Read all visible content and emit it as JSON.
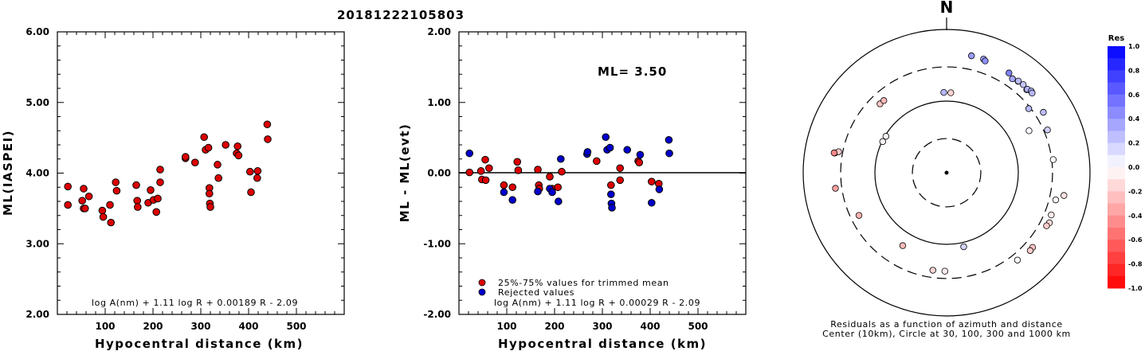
{
  "event_id": "20181222105803",
  "chart_data": [
    {
      "type": "scatter",
      "ylabel": "ML(IASPEI)",
      "xlabel": "Hypocentral distance (km)",
      "xlim": [
        0,
        600
      ],
      "ylim": [
        2.0,
        6.0
      ],
      "xticks": [
        "100",
        "200",
        "300",
        "400",
        "500"
      ],
      "yticks": [
        "2.00",
        "3.00",
        "4.00",
        "5.00",
        "6.00"
      ],
      "formula": "log A(nm) + 1.11 log R + 0.00189 R - 2.09",
      "point_color": "#dd0000",
      "points": [
        [
          22,
          3.81
        ],
        [
          22,
          3.55
        ],
        [
          52,
          3.61
        ],
        [
          55,
          3.5
        ],
        [
          58,
          3.5
        ],
        [
          55,
          3.78
        ],
        [
          66,
          3.67
        ],
        [
          94,
          3.47
        ],
        [
          96,
          3.38
        ],
        [
          110,
          3.55
        ],
        [
          112,
          3.3
        ],
        [
          122,
          3.87
        ],
        [
          124,
          3.75
        ],
        [
          165,
          3.83
        ],
        [
          167,
          3.61
        ],
        [
          168,
          3.52
        ],
        [
          190,
          3.58
        ],
        [
          195,
          3.76
        ],
        [
          201,
          3.62
        ],
        [
          207,
          3.45
        ],
        [
          210,
          3.64
        ],
        [
          215,
          3.87
        ],
        [
          215,
          4.05
        ],
        [
          268,
          4.21
        ],
        [
          268,
          4.23
        ],
        [
          288,
          4.15
        ],
        [
          307,
          4.51
        ],
        [
          310,
          4.33
        ],
        [
          316,
          4.36
        ],
        [
          318,
          3.79
        ],
        [
          318,
          3.71
        ],
        [
          319,
          3.57
        ],
        [
          320,
          3.52
        ],
        [
          335,
          4.12
        ],
        [
          337,
          3.93
        ],
        [
          352,
          4.4
        ],
        [
          375,
          4.28
        ],
        [
          377,
          4.38
        ],
        [
          379,
          4.25
        ],
        [
          403,
          4.02
        ],
        [
          405,
          3.73
        ],
        [
          418,
          3.93
        ],
        [
          419,
          4.03
        ],
        [
          439,
          4.69
        ],
        [
          440,
          4.48
        ]
      ]
    },
    {
      "type": "scatter",
      "ylabel": "ML - ML(evt)",
      "xlabel": "Hypocentral distance (km)",
      "xlim": [
        0,
        600
      ],
      "ylim": [
        -2.0,
        2.0
      ],
      "xticks": [
        "100",
        "200",
        "300",
        "400",
        "500"
      ],
      "yticks": [
        "-2.00",
        "-1.00",
        "0.00",
        "1.00",
        "2.00"
      ],
      "ml_label": "ML= 3.50",
      "legend": [
        "25%-75% values for trimmed mean",
        "Rejected values"
      ],
      "formula": "log A(nm) + 1.11 log R + 0.00029 R - 2.09",
      "series": [
        {
          "name": "25%-75% values for trimmed mean",
          "color": "#dd0000",
          "points": [
            [
              22,
              0.01
            ],
            [
              46,
              0.03
            ],
            [
              48,
              -0.09
            ],
            [
              55,
              0.19
            ],
            [
              56,
              -0.1
            ],
            [
              63,
              0.07
            ],
            [
              94,
              -0.17
            ],
            [
              112,
              -0.2
            ],
            [
              122,
              0.16
            ],
            [
              124,
              0.04
            ],
            [
              165,
              0.05
            ],
            [
              167,
              -0.17
            ],
            [
              168,
              -0.22
            ],
            [
              190,
              -0.05
            ],
            [
              195,
              -0.22
            ],
            [
              207,
              -0.2
            ],
            [
              215,
              0.02
            ],
            [
              288,
              0.17
            ],
            [
              318,
              -0.17
            ],
            [
              337,
              0.07
            ],
            [
              337,
              -0.1
            ],
            [
              375,
              0.17
            ],
            [
              377,
              0.15
            ],
            [
              403,
              -0.12
            ],
            [
              418,
              -0.15
            ]
          ]
        },
        {
          "name": "Rejected values",
          "color": "#0000cc",
          "points": [
            [
              22,
              0.28
            ],
            [
              94,
              -0.27
            ],
            [
              112,
              -0.38
            ],
            [
              165,
              -0.26
            ],
            [
              190,
              -0.22
            ],
            [
              195,
              -0.27
            ],
            [
              208,
              -0.4
            ],
            [
              213,
              0.2
            ],
            [
              268,
              0.27
            ],
            [
              269,
              0.3
            ],
            [
              307,
              0.51
            ],
            [
              310,
              0.33
            ],
            [
              316,
              0.36
            ],
            [
              318,
              -0.3
            ],
            [
              319,
              -0.43
            ],
            [
              320,
              -0.49
            ],
            [
              352,
              0.33
            ],
            [
              379,
              0.26
            ],
            [
              403,
              -0.42
            ],
            [
              419,
              -0.23
            ],
            [
              439,
              0.47
            ],
            [
              440,
              0.28
            ]
          ]
        }
      ]
    },
    {
      "type": "scatter",
      "subtype": "polar",
      "north_label": "N",
      "caption_line1": "Residuals as a function of azimuth and distance",
      "caption_line2": "Center (10km), Circle at 30, 100, 300 and 1000 km",
      "rings_km": [
        30,
        100,
        300,
        1000
      ],
      "colorbar": {
        "title": "Res",
        "ticks": [
          "1.0",
          "0.8",
          "0.6",
          "0.4",
          "0.2",
          "0.0",
          "-0.2",
          "-0.4",
          "-0.6",
          "-0.8",
          "-1.0"
        ],
        "max_color": "#0000ff",
        "mid_color": "#ffffff",
        "min_color": "#ff0000"
      },
      "stations": [
        {
          "az": 12,
          "dist": 466,
          "res": 0.39
        },
        {
          "az": 18,
          "dist": 465,
          "res": 0.36
        },
        {
          "az": 19,
          "dist": 447,
          "res": 0.44
        },
        {
          "az": 32,
          "dist": 438,
          "res": 0.5
        },
        {
          "az": 35,
          "dist": 399,
          "res": 0.35
        },
        {
          "az": 38,
          "dist": 416,
          "res": 0.33
        },
        {
          "az": 38,
          "dist": 421,
          "res": 0.27
        },
        {
          "az": 41,
          "dist": 426,
          "res": 0.23
        },
        {
          "az": 44,
          "dist": 407,
          "res": 0.25
        },
        {
          "az": 44,
          "dist": 418,
          "res": 0.29
        },
        {
          "az": 46,
          "dist": 437,
          "res": 0.31
        },
        {
          "az": 47,
          "dist": 427,
          "res": 0.28
        },
        {
          "az": 52,
          "dist": 284,
          "res": 0.27
        },
        {
          "az": 58,
          "dist": 390,
          "res": 0.26
        },
        {
          "az": 67,
          "dist": 337,
          "res": 0.18
        },
        {
          "az": 83,
          "dist": 315,
          "res": -0.02
        },
        {
          "az": 101,
          "dist": 464,
          "res": -0.12
        },
        {
          "az": 104,
          "dist": 370,
          "res": -0.04
        },
        {
          "az": 112,
          "dist": 375,
          "res": -0.08
        },
        {
          "az": 116,
          "dist": 394,
          "res": -0.15
        },
        {
          "az": 118,
          "dist": 379,
          "res": -0.2
        },
        {
          "az": 131,
          "dist": 388,
          "res": -0.22
        },
        {
          "az": 133,
          "dist": 393,
          "res": -0.2
        },
        {
          "az": 141,
          "dist": 371,
          "res": -0.01
        },
        {
          "az": 167,
          "dist": 115,
          "res": 0.17
        },
        {
          "az": 181,
          "dist": 237,
          "res": -0.08
        },
        {
          "az": 188,
          "dist": 237,
          "res": -0.17
        },
        {
          "az": 211,
          "dist": 154,
          "res": -0.27
        },
        {
          "az": 244,
          "dist": 229,
          "res": -0.3
        },
        {
          "az": 262,
          "dist": 367,
          "res": -0.37
        },
        {
          "az": 280,
          "dist": 382,
          "res": -0.36
        },
        {
          "az": 281,
          "dist": 342,
          "res": -0.2
        },
        {
          "az": 280,
          "dist": 391,
          "res": -0.46
        },
        {
          "az": 296,
          "dist": 98,
          "res": -0.02
        },
        {
          "az": 301,
          "dist": 97,
          "res": -0.03
        },
        {
          "az": 316,
          "dist": 217,
          "res": -0.22
        },
        {
          "az": 319,
          "dist": 216,
          "res": -0.27
        },
        {
          "az": 358,
          "dist": 132,
          "res": 0.28
        },
        {
          "az": 3,
          "dist": 131,
          "res": -0.17
        },
        {
          "az": 63,
          "dist": 195,
          "res": 0.04
        }
      ]
    }
  ]
}
